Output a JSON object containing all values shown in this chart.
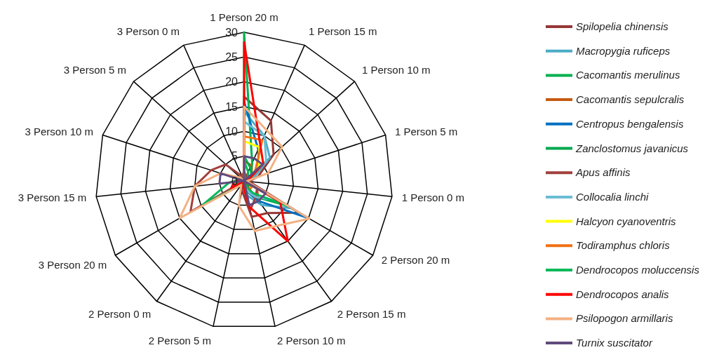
{
  "chart_data": {
    "type": "radar",
    "categories": [
      "1 Person 20 m",
      "1 Person 15 m",
      "1 Person 10 m",
      "1 Person 5 m",
      "1 Person 0 m",
      "2 Person 20 m",
      "2 Person 15 m",
      "2 Person 10 m",
      "2 Person 5 m",
      "2 Person 0 m",
      "3 Person 20 m",
      "3 Person 15 m",
      "3 Person 10 m",
      "3 Person 5 m",
      "3 Person 0 m"
    ],
    "ylim": [
      0,
      30
    ],
    "yticks": [
      0,
      5,
      10,
      15,
      20,
      25,
      30
    ],
    "legend": "right",
    "grid": true,
    "marker": "none",
    "series": [
      {
        "name": "Spilopelia chinensis",
        "color": "#953735",
        "values": [
          17,
          13.3,
          8,
          3,
          1,
          12.8,
          8,
          7.4,
          2,
          1,
          3,
          2,
          1,
          1,
          0
        ]
      },
      {
        "name": "Macropygia ruficeps",
        "color": "#4bacc6",
        "values": [
          14,
          10,
          7,
          2,
          0,
          11,
          6,
          3,
          1,
          0,
          2,
          1,
          0,
          0,
          0
        ]
      },
      {
        "name": "Cacomantis merulinus",
        "color": "#00b050",
        "values": [
          30,
          4,
          2,
          1,
          0,
          2,
          1,
          1,
          0,
          1,
          3,
          2,
          1,
          0,
          0
        ]
      },
      {
        "name": "Cacomantis sepulcralis",
        "color": "#c55a11",
        "values": [
          4,
          3.5,
          2,
          1,
          0,
          3,
          5,
          2,
          1,
          0,
          2,
          1,
          0,
          0,
          0
        ]
      },
      {
        "name": "Centropus bengalensis",
        "color": "#0070c0",
        "values": [
          16,
          7,
          4,
          1,
          0,
          15,
          5,
          2,
          0,
          0,
          2,
          1,
          0,
          0,
          0
        ]
      },
      {
        "name": "Zanclostomus javanicus",
        "color": "#00a84f",
        "values": [
          5,
          3,
          2,
          0,
          0,
          10,
          4,
          2,
          0,
          0,
          3,
          1,
          0,
          0,
          0
        ]
      },
      {
        "name": "Apus affinis",
        "color": "#a0403c",
        "values": [
          2,
          1,
          1,
          0,
          0,
          3,
          4,
          6,
          1,
          0,
          12.5,
          10,
          7,
          5,
          1
        ]
      },
      {
        "name": "Collocalia linchi",
        "color": "#6cbdd3",
        "values": [
          12,
          10,
          6,
          1,
          0,
          8,
          4,
          2,
          0,
          0,
          1,
          1,
          0,
          0,
          0
        ]
      },
      {
        "name": "Halcyon cyanoventris",
        "color": "#ffff00",
        "values": [
          8,
          7.5,
          4,
          1,
          0,
          1,
          0,
          0,
          0,
          0,
          0,
          0,
          0,
          0,
          0
        ]
      },
      {
        "name": "Todiramphus chloris",
        "color": "#f07010",
        "values": [
          9,
          9,
          3,
          1,
          0,
          2,
          2,
          1,
          0,
          0,
          1,
          1,
          0,
          0,
          0
        ]
      },
      {
        "name": "Dendrocopos moluccensis",
        "color": "#00b85a",
        "values": [
          4,
          2,
          1,
          0,
          0,
          10,
          3,
          1,
          0,
          1,
          9.6,
          3,
          1,
          0,
          0
        ]
      },
      {
        "name": "Dendrocopos analis",
        "color": "#ff0000",
        "values": [
          28,
          8,
          5.2,
          1,
          0,
          8.4,
          15,
          5.4,
          1,
          0,
          3,
          2,
          1,
          0,
          0
        ]
      },
      {
        "name": "Psilopogon armillaris",
        "color": "#f4b183",
        "values": [
          15,
          11.2,
          10.3,
          5.1,
          0.5,
          15.2,
          11.2,
          10.3,
          5.1,
          1,
          15,
          10,
          5,
          1,
          0
        ]
      },
      {
        "name": "Turnix suscitator",
        "color": "#604a7b",
        "values": [
          5,
          5,
          5,
          0,
          0,
          5,
          5,
          5,
          0,
          0,
          0,
          5,
          5,
          0,
          0
        ]
      }
    ]
  }
}
